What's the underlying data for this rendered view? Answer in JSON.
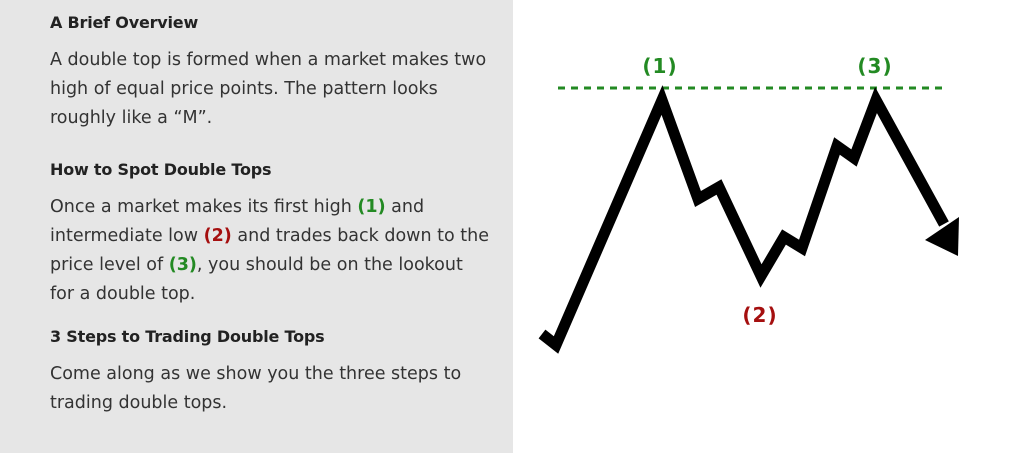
{
  "overview": {
    "heading": "A Brief Overview",
    "body": "A double top is formed when a market makes two high of equal price points. The pattern looks roughly like a “M”."
  },
  "spot": {
    "heading": "How to Spot Double Tops",
    "text1": "Once a market makes its first high ",
    "mark1": "(1)",
    "text2": " and intermediate low ",
    "mark2": "(2)",
    "text3": " and trades back down to the price level of ",
    "mark3": "(3)",
    "text4": ", you should be on the lookout for a double top."
  },
  "steps": {
    "heading": "3 Steps to Trading Double Tops",
    "body": "Come along as we show you the three steps to trading double tops."
  },
  "diagram": {
    "label_1": "(1)",
    "label_2": "(2)",
    "label_3": "(3)",
    "colors": {
      "green": "#238a23",
      "red": "#a50f0f",
      "line": "#000000"
    }
  }
}
